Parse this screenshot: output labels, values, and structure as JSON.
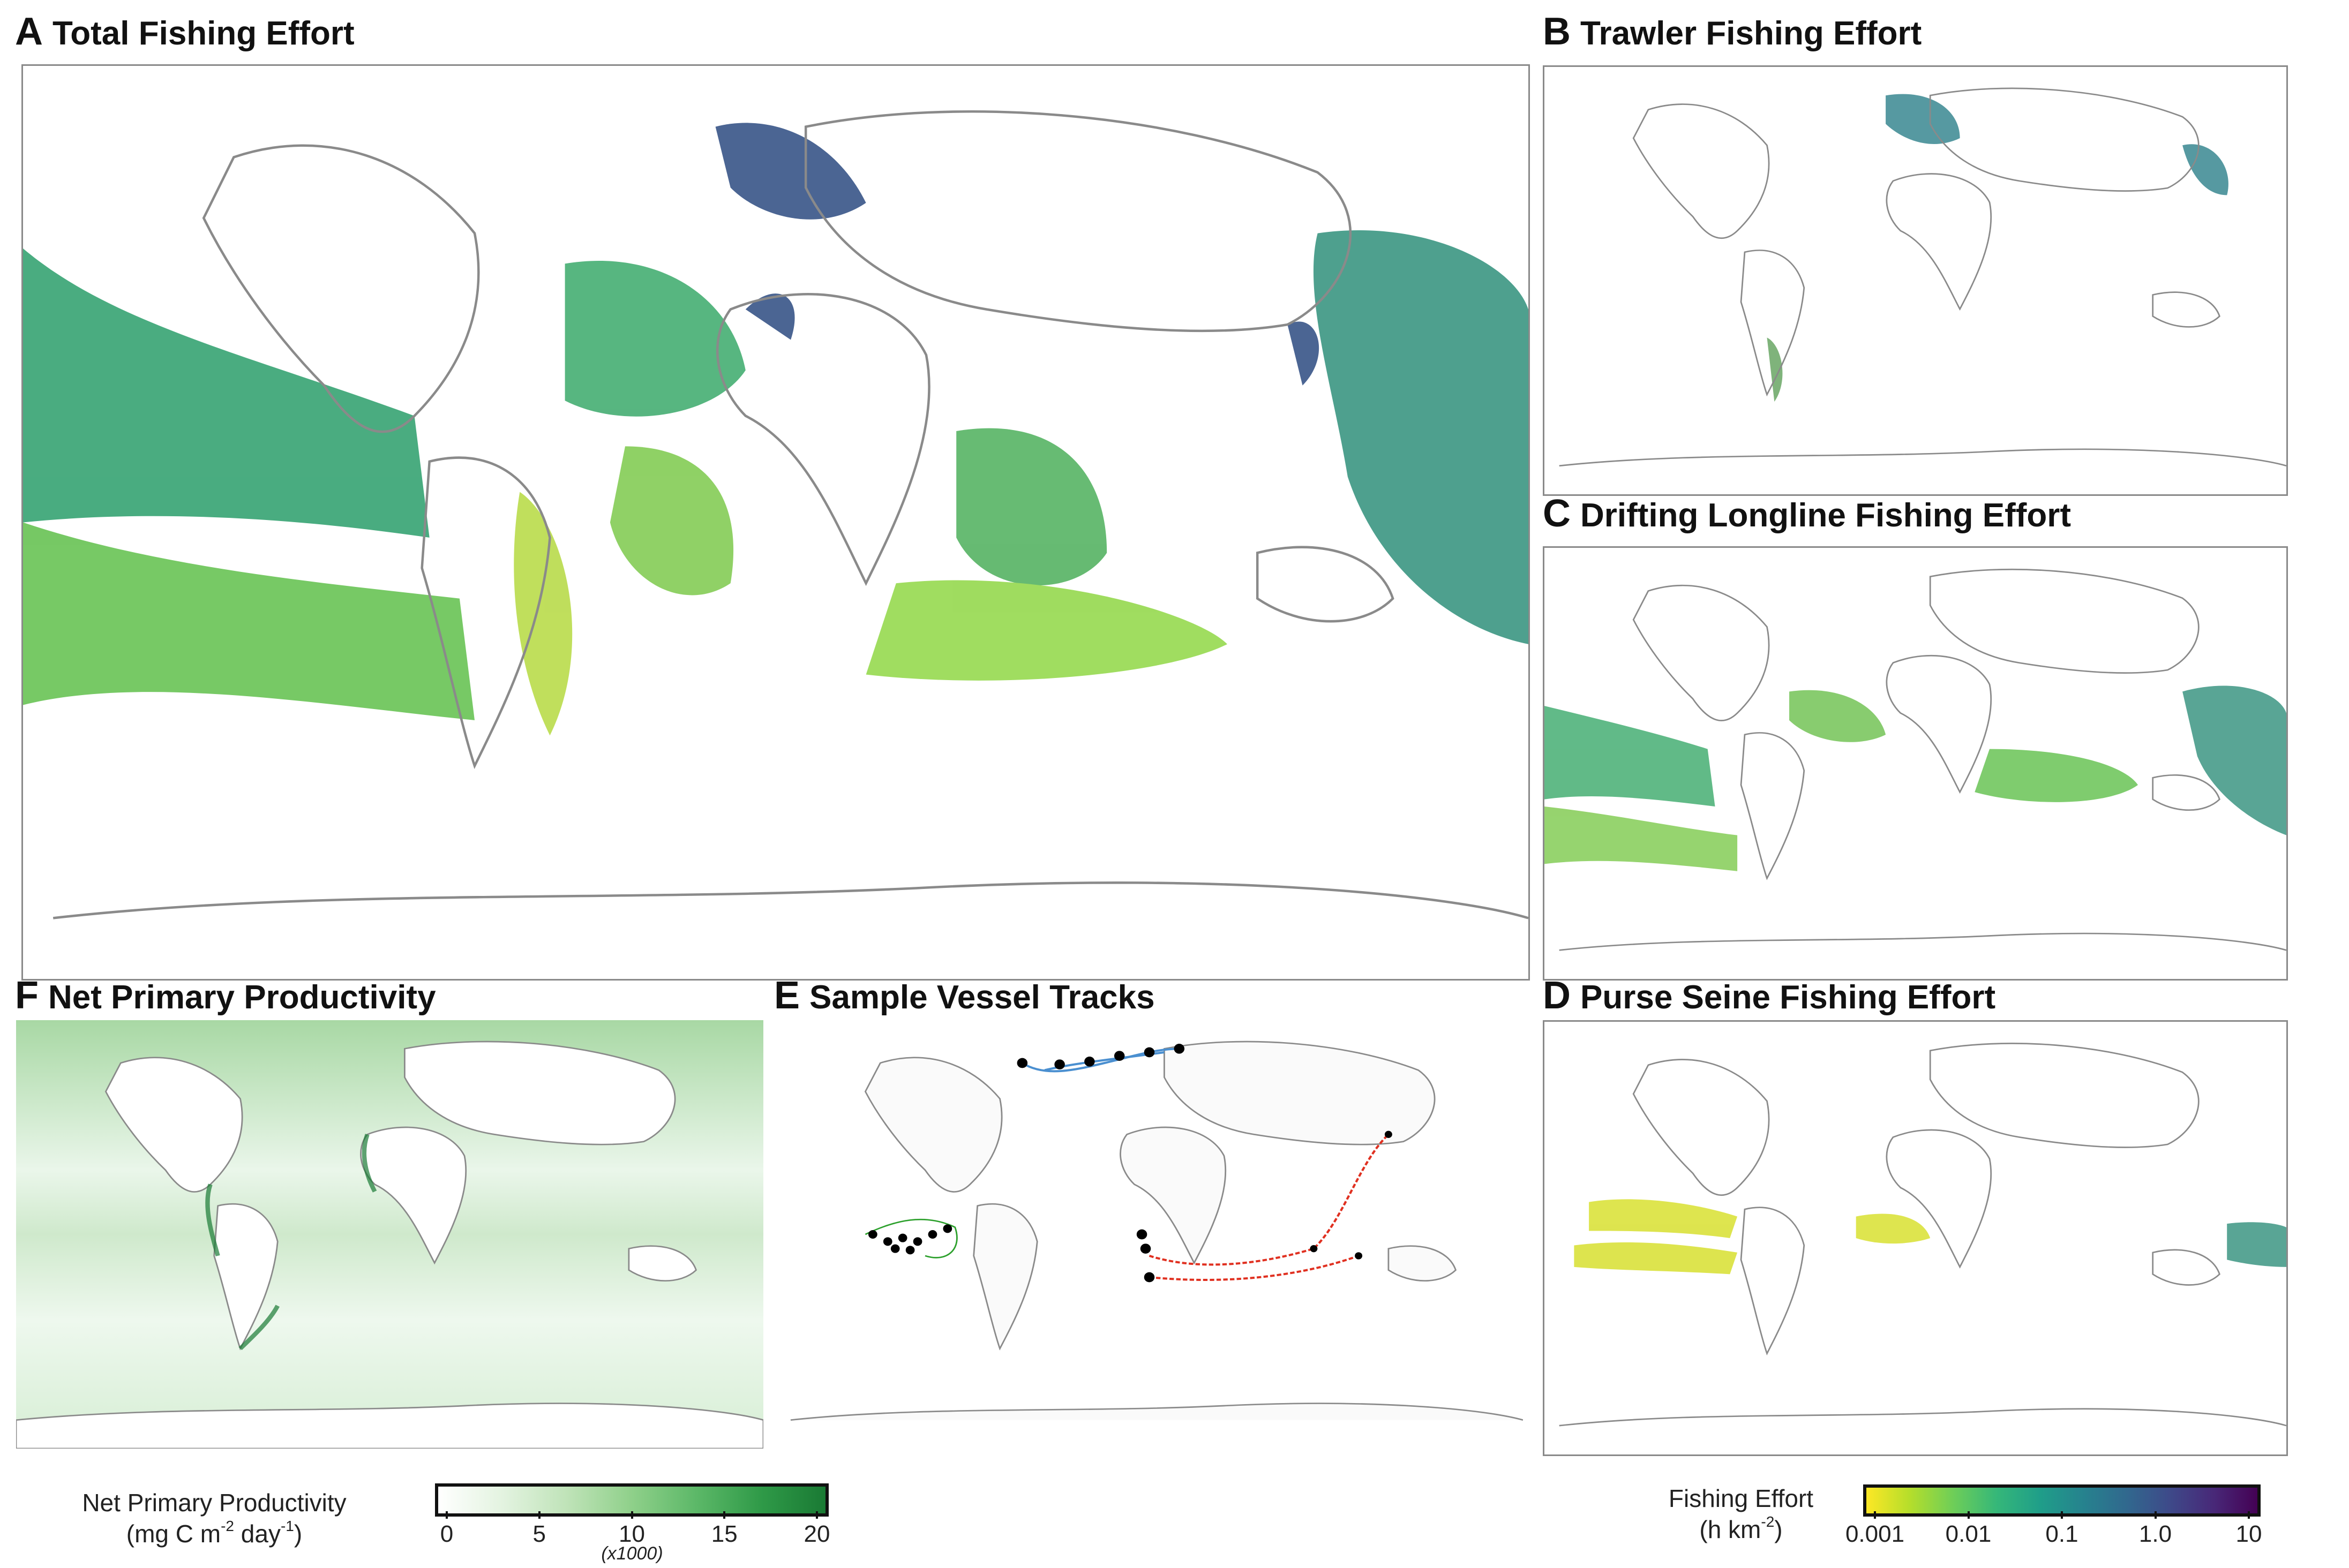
{
  "panels": {
    "a": {
      "letter": "A",
      "title": "Total Fishing Effort"
    },
    "b": {
      "letter": "B",
      "title": "Trawler Fishing Effort"
    },
    "c": {
      "letter": "C",
      "title": "Drifting Longline Fishing Effort"
    },
    "d": {
      "letter": "D",
      "title": "Purse Seine Fishing Effort"
    },
    "e": {
      "letter": "E",
      "title": "Sample Vessel Tracks"
    },
    "f": {
      "letter": "F",
      "title": "Net Primary Productivity"
    }
  },
  "npp_legend": {
    "title_line1": "Net Primary Productivity",
    "unit_a": "(mg C m",
    "unit_exp1": "-2",
    "unit_b": " day",
    "unit_exp2": "-1",
    "unit_c": ")",
    "ticks": [
      "0",
      "5",
      "10",
      "15",
      "20"
    ],
    "multiplier": "(x1000)",
    "color_low": "#ffffff",
    "color_high": "#1a7a34"
  },
  "effort_legend": {
    "title_line1": "Fishing Effort",
    "unit_a": "(h km",
    "unit_exp": "-2",
    "unit_b": ")",
    "ticks": [
      "0.001",
      "0.01",
      "0.1",
      "1.0",
      "10"
    ],
    "colors": [
      "#fde725",
      "#8fd744",
      "#35b779",
      "#21918c",
      "#31688e",
      "#443983",
      "#440154"
    ]
  },
  "track_colors": {
    "north_atlantic": "#4a8fd0",
    "pacific": "#2ca02c",
    "indian": "#e03020"
  }
}
